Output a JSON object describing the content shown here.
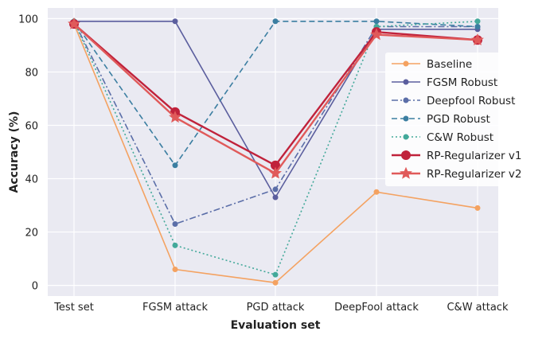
{
  "chart_data": {
    "type": "line",
    "title": "",
    "xlabel": "Evaluation set",
    "ylabel": "Accuracy (%)",
    "categories": [
      "Test set",
      "FGSM attack",
      "PGD attack",
      "DeepFool attack",
      "C&W attack"
    ],
    "ylim": [
      -4,
      104
    ],
    "yticks": [
      0,
      20,
      40,
      60,
      80,
      100
    ],
    "grid": true,
    "legend_position": "center-right",
    "series": [
      {
        "name": "Baseline",
        "values": [
          98,
          6,
          1,
          35,
          29
        ],
        "color": "#f4a261",
        "dash": "solid",
        "marker": "circle",
        "width": 1.6,
        "marker_size": 3
      },
      {
        "name": "FGSM Robust",
        "values": [
          99,
          99,
          33,
          96,
          96
        ],
        "color": "#5b5e9e",
        "dash": "solid",
        "marker": "circle",
        "width": 1.6,
        "marker_size": 3
      },
      {
        "name": "Deepfool Robust",
        "values": [
          99,
          23,
          36,
          97,
          97
        ],
        "color": "#5b6ea8",
        "dash": "dashdot",
        "marker": "circle",
        "width": 1.6,
        "marker_size": 3
      },
      {
        "name": "PGD Robust",
        "values": [
          99,
          45,
          99,
          99,
          97
        ],
        "color": "#3b7ea1",
        "dash": "dashed",
        "marker": "circle",
        "width": 1.6,
        "marker_size": 3
      },
      {
        "name": "C&W Robust",
        "values": [
          99,
          15,
          4,
          97,
          99
        ],
        "color": "#43a99a",
        "dash": "dotted",
        "marker": "circle",
        "width": 1.6,
        "marker_size": 3
      },
      {
        "name": "RP-Regularizer v1",
        "values": [
          98,
          65,
          45,
          95,
          92
        ],
        "color": "#c0223b",
        "dash": "solid",
        "marker": "circle",
        "width": 2.4,
        "marker_size": 5.5
      },
      {
        "name": "RP-Regularizer v2",
        "values": [
          98,
          63,
          42,
          94,
          92
        ],
        "color": "#e05a5a",
        "dash": "solid",
        "marker": "star",
        "width": 2.4,
        "marker_size": 5.5
      }
    ]
  }
}
